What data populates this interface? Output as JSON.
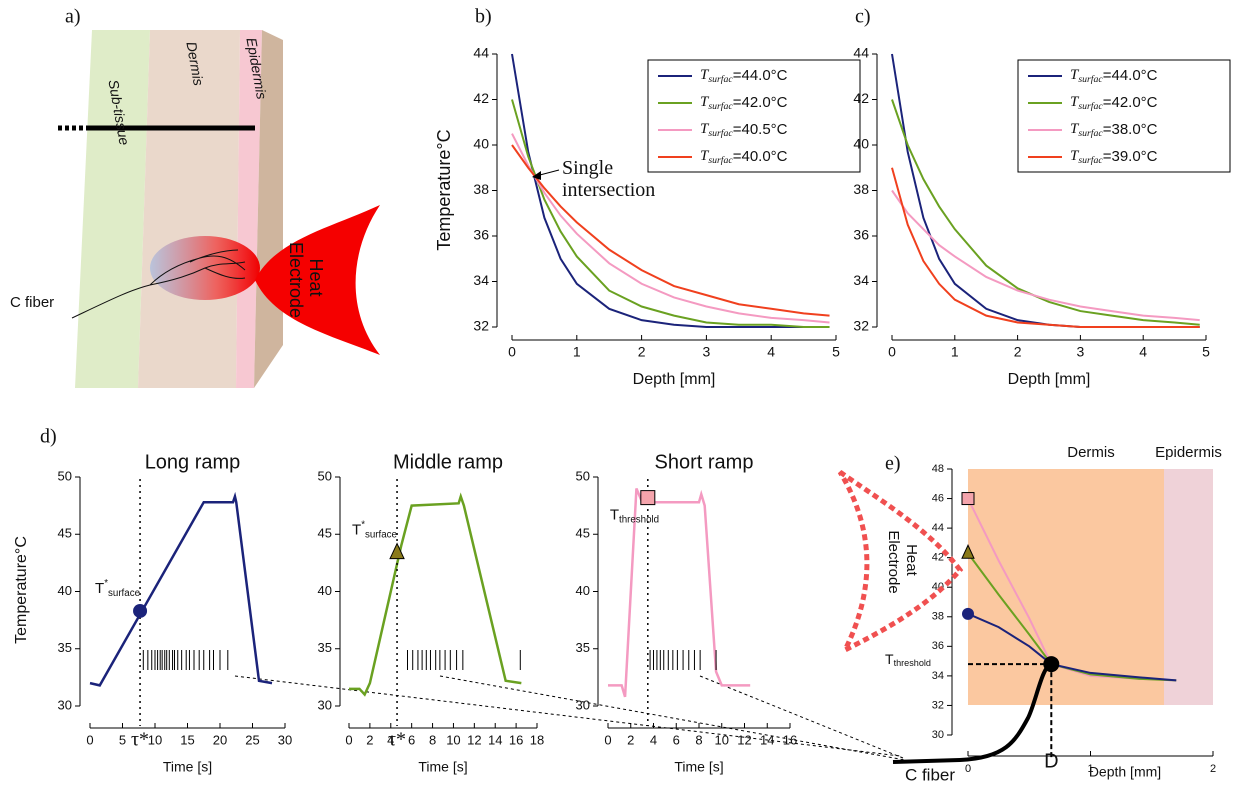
{
  "illustration": {
    "panel_label": "a)",
    "layers": [
      "Sub-tissue",
      "Dermis",
      "Epidermis"
    ],
    "electrode_label": "Heat Electrode",
    "fiber_label": "C fiber"
  },
  "chart_data": [
    {
      "type": "line",
      "panel_label": "b)",
      "xlabel": "Depth [mm]",
      "ylabel": "Temperature°C",
      "x": [
        0,
        0.25,
        0.5,
        0.75,
        1,
        1.5,
        2,
        2.5,
        3,
        3.5,
        4,
        4.5,
        4.9
      ],
      "xlim": [
        0,
        5
      ],
      "xticks": [
        0,
        1,
        2,
        3,
        4,
        5
      ],
      "ylim": [
        32,
        44
      ],
      "yticks": [
        32,
        34,
        36,
        38,
        40,
        42,
        44
      ],
      "legend": "upper right",
      "series": [
        {
          "name": "Tsurfac=44.0°C",
          "color": "#1b237a",
          "values": [
            44,
            39.7,
            36.8,
            35.0,
            33.9,
            32.8,
            32.3,
            32.1,
            32.0,
            32.0,
            32.0,
            32.0,
            32.0
          ]
        },
        {
          "name": "Tsurfac=42.0°C",
          "color": "#6aa121",
          "values": [
            42,
            39.5,
            37.6,
            36.2,
            35.1,
            33.6,
            32.9,
            32.5,
            32.2,
            32.1,
            32.1,
            32.0,
            32.0
          ]
        },
        {
          "name": "Tsurfac=40.5°C",
          "color": "#f49ac1",
          "values": [
            40.5,
            39.1,
            37.9,
            36.9,
            36.1,
            34.8,
            33.9,
            33.3,
            32.9,
            32.6,
            32.4,
            32.3,
            32.2
          ]
        },
        {
          "name": "Tsurfac=40.0°C",
          "color": "#f0401e",
          "values": [
            40,
            39.0,
            38.1,
            37.3,
            36.6,
            35.4,
            34.5,
            33.8,
            33.4,
            33.0,
            32.8,
            32.6,
            32.5
          ]
        }
      ],
      "annotation": "Single intersection"
    },
    {
      "type": "line",
      "panel_label": "c)",
      "xlabel": "Depth [mm]",
      "x": [
        0,
        0.25,
        0.5,
        0.75,
        1,
        1.5,
        2,
        2.5,
        3,
        3.5,
        4,
        4.5,
        4.9
      ],
      "xlim": [
        0,
        5
      ],
      "xticks": [
        0,
        1,
        2,
        3,
        4,
        5
      ],
      "ylim": [
        32,
        44
      ],
      "yticks": [
        32,
        34,
        36,
        38,
        40,
        42,
        44
      ],
      "legend": "upper right",
      "series": [
        {
          "name": "Tsurfac=44.0°C",
          "color": "#1b237a",
          "values": [
            44,
            39.7,
            36.8,
            35.0,
            33.9,
            32.8,
            32.3,
            32.1,
            32.0,
            32.0,
            32.0,
            32.0,
            32.0
          ]
        },
        {
          "name": "Tsurfac=42.0°C",
          "color": "#6aa121",
          "values": [
            42,
            40.0,
            38.5,
            37.3,
            36.3,
            34.7,
            33.7,
            33.1,
            32.7,
            32.5,
            32.3,
            32.2,
            32.1
          ]
        },
        {
          "name": "Tsurfac=38.0°C",
          "color": "#f49ac1",
          "values": [
            38,
            37.0,
            36.3,
            35.6,
            35.1,
            34.2,
            33.6,
            33.2,
            32.9,
            32.7,
            32.5,
            32.4,
            32.3
          ]
        },
        {
          "name": "Tsurfac=39.0°C",
          "color": "#f0401e",
          "values": [
            39,
            36.5,
            34.9,
            33.9,
            33.2,
            32.5,
            32.2,
            32.1,
            32.0,
            32.0,
            32.0,
            32.0,
            32.0
          ]
        }
      ]
    },
    {
      "type": "line",
      "panel_label": "d)",
      "title": "Long ramp",
      "xlabel": "Time [s]",
      "ylabel": "Temperature°C",
      "x": [
        0,
        1.5,
        17.5,
        22,
        22.3,
        22.5,
        26,
        28
      ],
      "values": [
        32,
        31.8,
        47.8,
        47.8,
        48.3,
        47.8,
        32.2,
        32
      ],
      "color": "#1b237a",
      "xlim": [
        0,
        30
      ],
      "xticks": [
        0,
        5,
        10,
        15,
        20,
        25,
        30
      ],
      "ylim": [
        30,
        50
      ],
      "yticks": [
        30,
        35,
        40,
        45,
        50
      ],
      "marker": {
        "x": 7.7,
        "y": 38.3,
        "shape": "circle",
        "color": "#1b237a",
        "label": "T*surface",
        "time_label": "τ*"
      },
      "spikes": [
        8.2,
        8.9,
        9.5,
        10.0,
        10.4,
        10.8,
        11.1,
        11.5,
        11.8,
        12.2,
        12.7,
        13.0,
        13.5,
        14.1,
        14.8,
        15.3,
        16.0,
        16.8,
        17.5,
        18.4,
        19.0,
        20.0,
        21.2
      ]
    },
    {
      "type": "line",
      "title": "Middle ramp",
      "xlabel": "Time [s]",
      "x": [
        0,
        1,
        1.5,
        2,
        5,
        6,
        10.5,
        10.7,
        11,
        15,
        16.5
      ],
      "values": [
        31.5,
        31.5,
        31,
        32,
        44,
        47.5,
        47.7,
        48.3,
        47.5,
        32.2,
        32
      ],
      "color": "#6aa121",
      "xlim": [
        0,
        18
      ],
      "xticks": [
        0,
        2,
        4,
        6,
        8,
        10,
        12,
        14,
        16,
        18
      ],
      "ylim": [
        30,
        50
      ],
      "yticks": [
        30,
        35,
        40,
        45,
        50
      ],
      "marker": {
        "x": 4.6,
        "y": 43.4,
        "shape": "triangle",
        "color": "#8a7a1a",
        "label": "T*surface",
        "time_label": "τ*"
      },
      "spikes": [
        5.6,
        6.1,
        6.6,
        7.0,
        7.4,
        7.8,
        8.3,
        8.7,
        9.2,
        9.7,
        10.3,
        10.9,
        16.4
      ]
    },
    {
      "type": "line",
      "title": "Short ramp",
      "xlabel": "Time [s]",
      "x": [
        0,
        1.2,
        1.5,
        2.5,
        3,
        8,
        8.2,
        8.5,
        9.5,
        10,
        12.5
      ],
      "values": [
        31.8,
        31.8,
        30.8,
        49,
        47.8,
        47.8,
        48.5,
        47.5,
        33,
        31.8,
        31.8
      ],
      "color": "#f49ac1",
      "xlim": [
        0,
        16
      ],
      "xticks": [
        0,
        2,
        4,
        6,
        8,
        10,
        12,
        14,
        16
      ],
      "ylim": [
        30,
        50
      ],
      "yticks": [
        30,
        35,
        40,
        45,
        50
      ],
      "marker": {
        "x": 3.5,
        "y": 48.2,
        "shape": "square",
        "color": "#f4a4ac",
        "label": "Tthreshold"
      },
      "spikes": [
        3.7,
        4.0,
        4.3,
        4.6,
        4.9,
        5.3,
        5.7,
        6.1,
        6.6,
        7.1,
        7.6,
        8.1,
        9.5
      ]
    },
    {
      "type": "line",
      "panel_label": "e)",
      "xlabel": "Depth [mm]",
      "x": [
        0,
        0.25,
        0.5,
        0.68,
        1,
        1.4,
        1.7
      ],
      "xlim": [
        0,
        2
      ],
      "xticks": [
        0,
        1,
        2
      ],
      "ylim": [
        30,
        48
      ],
      "yticks": [
        30,
        32,
        34,
        36,
        38,
        40,
        42,
        44,
        46,
        48
      ],
      "regions": [
        {
          "label": "Dermis",
          "from": 0,
          "to": 1.6,
          "color": "#fbc8a0"
        },
        {
          "label": "Epidermis",
          "from": 1.6,
          "to": 2,
          "color": "#efd2d8"
        }
      ],
      "series": [
        {
          "color": "#f49ac1",
          "values": [
            46,
            41.8,
            37.9,
            34.8,
            34.0,
            33.8,
            33.7
          ],
          "marker": "square",
          "marker_color": "#f4a4ac"
        },
        {
          "color": "#6aa121",
          "values": [
            42.3,
            39.5,
            36.8,
            34.8,
            34.1,
            33.8,
            33.7
          ],
          "marker": "triangle",
          "marker_color": "#8a7a1a"
        },
        {
          "color": "#1b237a",
          "values": [
            38.2,
            37.3,
            36.0,
            34.8,
            34.2,
            33.9,
            33.7
          ],
          "marker": "circle",
          "marker_color": "#1b237a"
        }
      ],
      "threshold": {
        "label": "Tthreshold",
        "x": 0.68,
        "y": 34.8,
        "x_label": "D"
      },
      "fiber_label": "C fiber",
      "electrode_label": "Heat Electrode"
    }
  ]
}
